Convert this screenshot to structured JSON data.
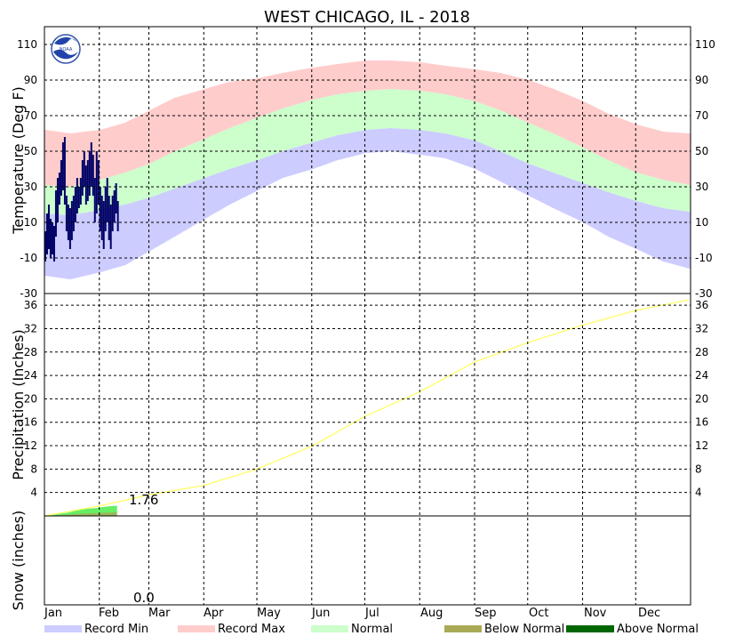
{
  "chart_data": {
    "type": "area",
    "title": "WEST CHICAGO, IL - 2018",
    "months": [
      "Jan",
      "Feb",
      "Mar",
      "Apr",
      "May",
      "Jun",
      "Jul",
      "Aug",
      "Sep",
      "Oct",
      "Nov",
      "Dec"
    ],
    "month_days": [
      31,
      28,
      31,
      30,
      31,
      30,
      31,
      31,
      30,
      31,
      30,
      31
    ],
    "legend": [
      {
        "label": "Record Min",
        "color": "#ccccff"
      },
      {
        "label": "Record Max",
        "color": "#ffcccc"
      },
      {
        "label": "Normal",
        "color": "#ccffcc"
      },
      {
        "label": "Below Normal",
        "color": "#aaaa55"
      },
      {
        "label": "Above Normal",
        "color": "#006600"
      }
    ],
    "colors": {
      "record_min": "#ccccff",
      "record_max": "#ffcccc",
      "normal": "#ccffcc",
      "observed": "#000066",
      "precip_normal": "#ffff66",
      "precip_observed": "#66ee66",
      "precip_below": "#aaaa55"
    },
    "panels": [
      {
        "id": "temperature",
        "ylabel": "Temperature (Deg F)",
        "ylim": [
          -30,
          120
        ],
        "ticks": [
          -30,
          -10,
          10,
          30,
          50,
          70,
          90,
          110
        ],
        "series": {
          "record_min_profile": {
            "day": [
              1,
              15,
              32,
              46,
              60,
              74,
              91,
              105,
              121,
              135,
              152,
              166,
              182,
              196,
              213,
              227,
              244,
              258,
              274,
              288,
              305,
              319,
              335,
              350,
              365
            ],
            "value": [
              -20,
              -22,
              -18,
              -14,
              -6,
              2,
              12,
              20,
              28,
              35,
              40,
              45,
              49,
              50,
              48,
              46,
              40,
              33,
              25,
              18,
              10,
              2,
              -5,
              -12,
              -16
            ]
          },
          "record_max_profile": {
            "day": [
              1,
              15,
              32,
              46,
              60,
              74,
              91,
              105,
              121,
              135,
              152,
              166,
              182,
              196,
              213,
              227,
              244,
              258,
              274,
              288,
              305,
              319,
              335,
              350,
              365
            ],
            "value": [
              62,
              60,
              62,
              66,
              73,
              80,
              85,
              89,
              91,
              94,
              97,
              99,
              101,
              101,
              100,
              98,
              96,
              94,
              90,
              85,
              78,
              71,
              65,
              61,
              60
            ]
          },
          "normal_low": {
            "day": [
              1,
              15,
              32,
              46,
              60,
              74,
              91,
              105,
              121,
              135,
              152,
              166,
              182,
              196,
              213,
              227,
              244,
              258,
              274,
              288,
              305,
              319,
              335,
              350,
              365
            ],
            "value": [
              15,
              14,
              17,
              20,
              24,
              29,
              35,
              40,
              45,
              50,
              55,
              59,
              62,
              63,
              62,
              60,
              56,
              50,
              43,
              38,
              32,
              27,
              22,
              18,
              16
            ]
          },
          "normal_high": {
            "day": [
              1,
              15,
              32,
              46,
              60,
              74,
              91,
              105,
              121,
              135,
              152,
              166,
              182,
              196,
              213,
              227,
              244,
              258,
              274,
              288,
              305,
              319,
              335,
              350,
              365
            ],
            "value": [
              31,
              30,
              34,
              38,
              43,
              50,
              57,
              63,
              69,
              74,
              79,
              82,
              84,
              85,
              84,
              82,
              78,
              73,
              66,
              60,
              52,
              45,
              38,
              34,
              31
            ]
          },
          "observed_2018": [
            {
              "day": 1,
              "low": -12,
              "high": 5
            },
            {
              "day": 2,
              "low": -8,
              "high": 15
            },
            {
              "day": 3,
              "low": -5,
              "high": 20
            },
            {
              "day": 4,
              "low": -10,
              "high": 12
            },
            {
              "day": 5,
              "low": -8,
              "high": 10
            },
            {
              "day": 6,
              "low": -12,
              "high": 8
            },
            {
              "day": 7,
              "low": 2,
              "high": 28
            },
            {
              "day": 8,
              "low": 10,
              "high": 35
            },
            {
              "day": 9,
              "low": 20,
              "high": 38
            },
            {
              "day": 10,
              "low": 25,
              "high": 45
            },
            {
              "day": 11,
              "low": 28,
              "high": 55
            },
            {
              "day": 12,
              "low": 20,
              "high": 58
            },
            {
              "day": 13,
              "low": 5,
              "high": 25
            },
            {
              "day": 14,
              "low": 0,
              "high": 20
            },
            {
              "day": 15,
              "low": -5,
              "high": 18
            },
            {
              "day": 16,
              "low": 0,
              "high": 22
            },
            {
              "day": 17,
              "low": 5,
              "high": 25
            },
            {
              "day": 18,
              "low": 10,
              "high": 30
            },
            {
              "day": 19,
              "low": 15,
              "high": 35
            },
            {
              "day": 20,
              "low": 18,
              "high": 30
            },
            {
              "day": 21,
              "low": 20,
              "high": 35
            },
            {
              "day": 22,
              "low": 25,
              "high": 45
            },
            {
              "day": 23,
              "low": 30,
              "high": 50
            },
            {
              "day": 24,
              "low": 20,
              "high": 42
            },
            {
              "day": 25,
              "low": 22,
              "high": 45
            },
            {
              "day": 26,
              "low": 25,
              "high": 50
            },
            {
              "day": 27,
              "low": 30,
              "high": 55
            },
            {
              "day": 28,
              "low": 25,
              "high": 48
            },
            {
              "day": 29,
              "low": 10,
              "high": 35
            },
            {
              "day": 30,
              "low": 15,
              "high": 50
            },
            {
              "day": 31,
              "low": 20,
              "high": 45
            },
            {
              "day": 32,
              "low": 5,
              "high": 30
            },
            {
              "day": 33,
              "low": 0,
              "high": 25
            },
            {
              "day": 34,
              "low": -5,
              "high": 22
            },
            {
              "day": 35,
              "low": 5,
              "high": 30
            },
            {
              "day": 36,
              "low": 10,
              "high": 35
            },
            {
              "day": 37,
              "low": 0,
              "high": 25
            },
            {
              "day": 38,
              "low": -5,
              "high": 20
            },
            {
              "day": 39,
              "low": 5,
              "high": 25
            },
            {
              "day": 40,
              "low": 10,
              "high": 28
            },
            {
              "day": 41,
              "low": 15,
              "high": 32
            },
            {
              "day": 42,
              "low": 5,
              "high": 22
            }
          ]
        }
      },
      {
        "id": "precipitation",
        "ylabel": "Precipitation (Inches)",
        "ylim": [
          0,
          38
        ],
        "ticks": [
          4,
          8,
          12,
          16,
          20,
          24,
          28,
          32,
          36
        ],
        "normal_cumulative": {
          "day": [
            1,
            32,
            60,
            91,
            121,
            152,
            182,
            213,
            244,
            274,
            305,
            335,
            365
          ],
          "value": [
            0.0,
            1.7,
            3.6,
            5.2,
            8.0,
            11.9,
            17.0,
            21.2,
            26.3,
            29.6,
            32.6,
            35.1,
            36.9
          ]
        },
        "observed_cumulative": {
          "day": [
            1,
            8,
            15,
            22,
            29,
            36,
            42
          ],
          "value": [
            0.0,
            0.3,
            0.6,
            1.2,
            1.3,
            1.6,
            1.76
          ]
        },
        "observed_label": "1.76"
      },
      {
        "id": "snow",
        "ylabel": "Snow (inches)",
        "observed_label": "0.0"
      }
    ]
  }
}
